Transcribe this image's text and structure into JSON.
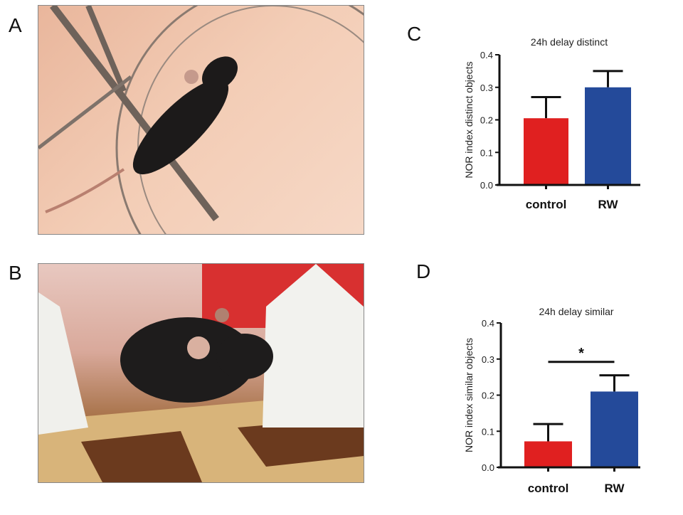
{
  "panels": {
    "a": "A",
    "b": "B",
    "c": "C",
    "d": "D"
  },
  "colors": {
    "control": "#e02020",
    "rw": "#244a9a"
  },
  "chart_data": [
    {
      "type": "bar",
      "panel": "C",
      "title": "24h delay distinct",
      "ylabel": "NOR index distinct objects",
      "xlabel": "",
      "categories": [
        "control",
        "RW"
      ],
      "values": [
        0.205,
        0.3
      ],
      "error_upper": [
        0.27,
        0.35
      ],
      "ylim": [
        0,
        0.4
      ],
      "yticks": [
        "0.0",
        "0.1",
        "0.2",
        "0.3",
        "0.4"
      ],
      "significance": null
    },
    {
      "type": "bar",
      "panel": "D",
      "title": "24h delay similar",
      "ylabel": "NOR index similar objects",
      "xlabel": "",
      "categories": [
        "control",
        "RW"
      ],
      "values": [
        0.072,
        0.21
      ],
      "error_upper": [
        0.12,
        0.255
      ],
      "ylim": [
        0,
        0.4
      ],
      "yticks": [
        "0.0",
        "0.1",
        "0.2",
        "0.3",
        "0.4"
      ],
      "significance": {
        "label": "*",
        "level": 0.292
      }
    }
  ]
}
